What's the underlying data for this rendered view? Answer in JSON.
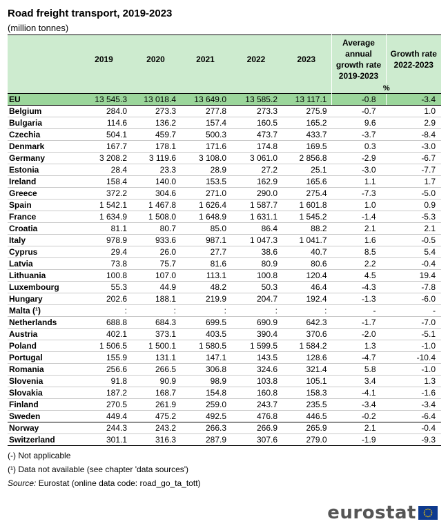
{
  "title": "Road freight transport, 2019-2023",
  "subtitle": "(million tonnes)",
  "headers": {
    "country": "",
    "years": [
      "2019",
      "2020",
      "2021",
      "2022",
      "2023"
    ],
    "avg_growth": "Average annual growth rate 2019-2023",
    "growth_rate": "Growth rate 2022-2023",
    "unit": "%"
  },
  "rows": [
    {
      "country": "EU",
      "v": [
        "13 545.3",
        "13 018.4",
        "13 649.0",
        "13 585.2",
        "13 117.1"
      ],
      "avg": "-0.8",
      "gr": "-3.4"
    },
    {
      "country": "Belgium",
      "v": [
        "284.0",
        "273.3",
        "277.8",
        "273.3",
        "275.9"
      ],
      "avg": "-0.7",
      "gr": "1.0"
    },
    {
      "country": "Bulgaria",
      "v": [
        "114.6",
        "136.2",
        "157.4",
        "160.5",
        "165.2"
      ],
      "avg": "9.6",
      "gr": "2.9"
    },
    {
      "country": "Czechia",
      "v": [
        "504.1",
        "459.7",
        "500.3",
        "473.7",
        "433.7"
      ],
      "avg": "-3.7",
      "gr": "-8.4"
    },
    {
      "country": "Denmark",
      "v": [
        "167.7",
        "178.1",
        "171.6",
        "174.8",
        "169.5"
      ],
      "avg": "0.3",
      "gr": "-3.0"
    },
    {
      "country": "Germany",
      "v": [
        "3 208.2",
        "3 119.6",
        "3 108.0",
        "3 061.0",
        "2 856.8"
      ],
      "avg": "-2.9",
      "gr": "-6.7"
    },
    {
      "country": "Estonia",
      "v": [
        "28.4",
        "23.3",
        "28.9",
        "27.2",
        "25.1"
      ],
      "avg": "-3.0",
      "gr": "-7.7"
    },
    {
      "country": "Ireland",
      "v": [
        "158.4",
        "140.0",
        "153.5",
        "162.9",
        "165.6"
      ],
      "avg": "1.1",
      "gr": "1.7"
    },
    {
      "country": "Greece",
      "v": [
        "372.2",
        "304.6",
        "271.0",
        "290.0",
        "275.4"
      ],
      "avg": "-7.3",
      "gr": "-5.0"
    },
    {
      "country": "Spain",
      "v": [
        "1 542.1",
        "1 467.8",
        "1 626.4",
        "1 587.7",
        "1 601.8"
      ],
      "avg": "1.0",
      "gr": "0.9"
    },
    {
      "country": "France",
      "v": [
        "1 634.9",
        "1 508.0",
        "1 648.9",
        "1 631.1",
        "1 545.2"
      ],
      "avg": "-1.4",
      "gr": "-5.3"
    },
    {
      "country": "Croatia",
      "v": [
        "81.1",
        "80.7",
        "85.0",
        "86.4",
        "88.2"
      ],
      "avg": "2.1",
      "gr": "2.1"
    },
    {
      "country": "Italy",
      "v": [
        "978.9",
        "933.6",
        "987.1",
        "1 047.3",
        "1 041.7"
      ],
      "avg": "1.6",
      "gr": "-0.5"
    },
    {
      "country": "Cyprus",
      "v": [
        "29.4",
        "26.0",
        "27.7",
        "38.6",
        "40.7"
      ],
      "avg": "8.5",
      "gr": "5.4"
    },
    {
      "country": "Latvia",
      "v": [
        "73.8",
        "75.7",
        "81.6",
        "80.9",
        "80.6"
      ],
      "avg": "2.2",
      "gr": "-0.4"
    },
    {
      "country": "Lithuania",
      "v": [
        "100.8",
        "107.0",
        "113.1",
        "100.8",
        "120.4"
      ],
      "avg": "4.5",
      "gr": "19.4"
    },
    {
      "country": "Luxembourg",
      "v": [
        "55.3",
        "44.9",
        "48.2",
        "50.3",
        "46.4"
      ],
      "avg": "-4.3",
      "gr": "-7.8"
    },
    {
      "country": "Hungary",
      "v": [
        "202.6",
        "188.1",
        "219.9",
        "204.7",
        "192.4"
      ],
      "avg": "-1.3",
      "gr": "-6.0"
    },
    {
      "country": "Malta (¹)",
      "v": [
        ":",
        ":",
        ":",
        ":",
        ":"
      ],
      "avg": "-",
      "gr": "-"
    },
    {
      "country": "Netherlands",
      "v": [
        "688.8",
        "684.3",
        "699.5",
        "690.9",
        "642.3"
      ],
      "avg": "-1.7",
      "gr": "-7.0"
    },
    {
      "country": "Austria",
      "v": [
        "402.1",
        "373.1",
        "403.5",
        "390.4",
        "370.6"
      ],
      "avg": "-2.0",
      "gr": "-5.1"
    },
    {
      "country": "Poland",
      "v": [
        "1 506.5",
        "1 500.1",
        "1 580.5",
        "1 599.5",
        "1 584.2"
      ],
      "avg": "1.3",
      "gr": "-1.0"
    },
    {
      "country": "Portugal",
      "v": [
        "155.9",
        "131.1",
        "147.1",
        "143.5",
        "128.6"
      ],
      "avg": "-4.7",
      "gr": "-10.4"
    },
    {
      "country": "Romania",
      "v": [
        "256.6",
        "266.5",
        "306.8",
        "324.6",
        "321.4"
      ],
      "avg": "5.8",
      "gr": "-1.0"
    },
    {
      "country": "Slovenia",
      "v": [
        "91.8",
        "90.9",
        "98.9",
        "103.8",
        "105.1"
      ],
      "avg": "3.4",
      "gr": "1.3"
    },
    {
      "country": "Slovakia",
      "v": [
        "187.2",
        "168.7",
        "154.8",
        "160.8",
        "158.3"
      ],
      "avg": "-4.1",
      "gr": "-1.6"
    },
    {
      "country": "Finland",
      "v": [
        "270.5",
        "261.9",
        "259.0",
        "243.7",
        "235.5"
      ],
      "avg": "-3.4",
      "gr": "-3.4"
    },
    {
      "country": "Sweden",
      "v": [
        "449.4",
        "475.2",
        "492.5",
        "476.8",
        "446.5"
      ],
      "avg": "-0.2",
      "gr": "-6.4"
    },
    {
      "country": "Norway",
      "v": [
        "244.3",
        "243.2",
        "266.3",
        "266.9",
        "265.9"
      ],
      "avg": "2.1",
      "gr": "-0.4"
    },
    {
      "country": "Switzerland",
      "v": [
        "301.1",
        "316.3",
        "287.9",
        "307.6",
        "279.0"
      ],
      "avg": "-1.9",
      "gr": "-9.3"
    }
  ],
  "notes": {
    "na": "(-) Not applicable",
    "unavailable": "(¹) Data not available (see chapter 'data sources')",
    "source_label": "Source:",
    "source_text": " Eurostat (online data code: road_go_ta_tott)"
  },
  "logo": {
    "text": "eurostat",
    "flag_color": "#0e3a8e",
    "star_color": "#ffcc00"
  },
  "colors": {
    "header_bg": "#cdebcf",
    "eu_row_bg": "#9bd69b"
  }
}
